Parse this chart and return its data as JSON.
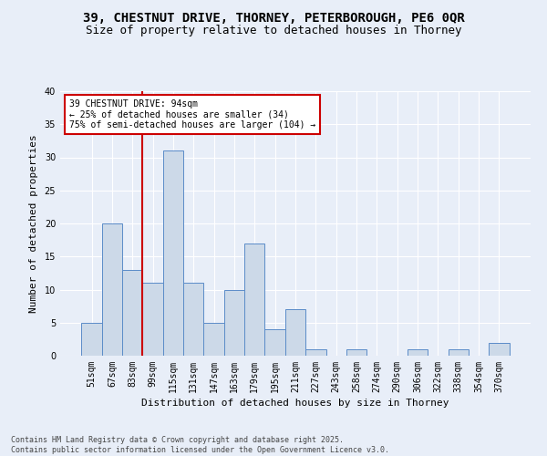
{
  "title_line1": "39, CHESTNUT DRIVE, THORNEY, PETERBOROUGH, PE6 0QR",
  "title_line2": "Size of property relative to detached houses in Thorney",
  "xlabel": "Distribution of detached houses by size in Thorney",
  "ylabel": "Number of detached properties",
  "categories": [
    "51sqm",
    "67sqm",
    "83sqm",
    "99sqm",
    "115sqm",
    "131sqm",
    "147sqm",
    "163sqm",
    "179sqm",
    "195sqm",
    "211sqm",
    "227sqm",
    "243sqm",
    "258sqm",
    "274sqm",
    "290sqm",
    "306sqm",
    "322sqm",
    "338sqm",
    "354sqm",
    "370sqm"
  ],
  "values": [
    5,
    20,
    13,
    11,
    31,
    11,
    5,
    10,
    17,
    4,
    7,
    1,
    0,
    1,
    0,
    0,
    1,
    0,
    1,
    0,
    2
  ],
  "bar_color": "#ccd9e8",
  "bar_edge_color": "#5b8cc8",
  "red_line_x": 2.5,
  "annotation_text": "39 CHESTNUT DRIVE: 94sqm\n← 25% of detached houses are smaller (34)\n75% of semi-detached houses are larger (104) →",
  "annotation_box_color": "white",
  "annotation_box_edge_color": "#cc0000",
  "red_line_color": "#cc0000",
  "ylim": [
    0,
    40
  ],
  "yticks": [
    0,
    5,
    10,
    15,
    20,
    25,
    30,
    35,
    40
  ],
  "background_color": "#e8eef8",
  "grid_color": "white",
  "footnote": "Contains HM Land Registry data © Crown copyright and database right 2025.\nContains public sector information licensed under the Open Government Licence v3.0.",
  "title_fontsize": 10,
  "subtitle_fontsize": 9,
  "axis_label_fontsize": 8,
  "tick_fontsize": 7,
  "ann_fontsize": 7
}
